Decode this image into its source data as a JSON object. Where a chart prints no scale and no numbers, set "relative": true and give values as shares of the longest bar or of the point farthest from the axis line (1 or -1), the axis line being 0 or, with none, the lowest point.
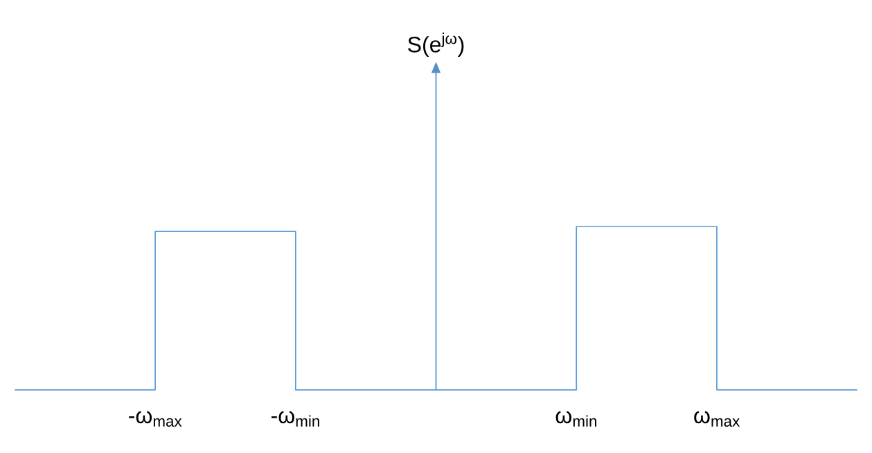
{
  "chart_data": {
    "type": "step",
    "relative": true,
    "annotations": [
      "S(e$^{jω}$)"
    ],
    "categories": [
      null,
      "-ω$_{max}$",
      "-ω$_{min}$",
      null,
      "ω$_{min}$",
      "ω$_{max}$",
      null
    ],
    "series": [
      {
        "color": "#5b9bd5",
        "values": [
          0,
          0.97,
          0,
          0,
          1,
          0,
          0
        ]
      }
    ],
    "grid": false
  }
}
